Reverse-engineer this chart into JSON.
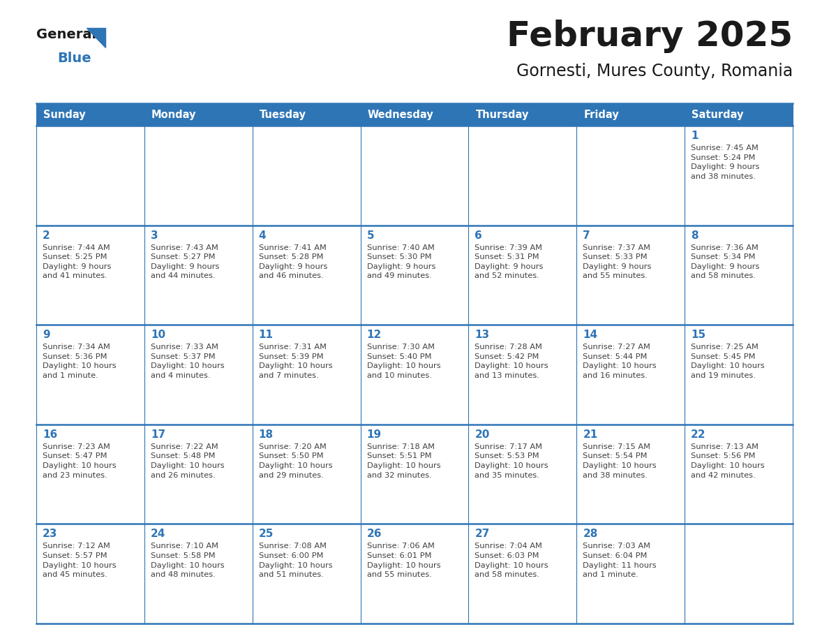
{
  "title": "February 2025",
  "subtitle": "Gornesti, Mures County, Romania",
  "header_bg": "#2E75B6",
  "header_text": "#FFFFFF",
  "cell_bg": "#FFFFFF",
  "grid_line_color": "#2E75B6",
  "day_headers": [
    "Sunday",
    "Monday",
    "Tuesday",
    "Wednesday",
    "Thursday",
    "Friday",
    "Saturday"
  ],
  "title_color": "#1a1a1a",
  "subtitle_color": "#1a1a1a",
  "day_num_color": "#2E75B6",
  "info_color": "#404040",
  "logo_general_color": "#1a1a1a",
  "logo_blue_color": "#2E75B6",
  "calendar_data": [
    [
      null,
      null,
      null,
      null,
      null,
      null,
      {
        "day": "1",
        "sunrise": "7:45 AM",
        "sunset": "5:24 PM",
        "daylight": "9 hours\nand 38 minutes."
      }
    ],
    [
      {
        "day": "2",
        "sunrise": "7:44 AM",
        "sunset": "5:25 PM",
        "daylight": "9 hours\nand 41 minutes."
      },
      {
        "day": "3",
        "sunrise": "7:43 AM",
        "sunset": "5:27 PM",
        "daylight": "9 hours\nand 44 minutes."
      },
      {
        "day": "4",
        "sunrise": "7:41 AM",
        "sunset": "5:28 PM",
        "daylight": "9 hours\nand 46 minutes."
      },
      {
        "day": "5",
        "sunrise": "7:40 AM",
        "sunset": "5:30 PM",
        "daylight": "9 hours\nand 49 minutes."
      },
      {
        "day": "6",
        "sunrise": "7:39 AM",
        "sunset": "5:31 PM",
        "daylight": "9 hours\nand 52 minutes."
      },
      {
        "day": "7",
        "sunrise": "7:37 AM",
        "sunset": "5:33 PM",
        "daylight": "9 hours\nand 55 minutes."
      },
      {
        "day": "8",
        "sunrise": "7:36 AM",
        "sunset": "5:34 PM",
        "daylight": "9 hours\nand 58 minutes."
      }
    ],
    [
      {
        "day": "9",
        "sunrise": "7:34 AM",
        "sunset": "5:36 PM",
        "daylight": "10 hours\nand 1 minute."
      },
      {
        "day": "10",
        "sunrise": "7:33 AM",
        "sunset": "5:37 PM",
        "daylight": "10 hours\nand 4 minutes."
      },
      {
        "day": "11",
        "sunrise": "7:31 AM",
        "sunset": "5:39 PM",
        "daylight": "10 hours\nand 7 minutes."
      },
      {
        "day": "12",
        "sunrise": "7:30 AM",
        "sunset": "5:40 PM",
        "daylight": "10 hours\nand 10 minutes."
      },
      {
        "day": "13",
        "sunrise": "7:28 AM",
        "sunset": "5:42 PM",
        "daylight": "10 hours\nand 13 minutes."
      },
      {
        "day": "14",
        "sunrise": "7:27 AM",
        "sunset": "5:44 PM",
        "daylight": "10 hours\nand 16 minutes."
      },
      {
        "day": "15",
        "sunrise": "7:25 AM",
        "sunset": "5:45 PM",
        "daylight": "10 hours\nand 19 minutes."
      }
    ],
    [
      {
        "day": "16",
        "sunrise": "7:23 AM",
        "sunset": "5:47 PM",
        "daylight": "10 hours\nand 23 minutes."
      },
      {
        "day": "17",
        "sunrise": "7:22 AM",
        "sunset": "5:48 PM",
        "daylight": "10 hours\nand 26 minutes."
      },
      {
        "day": "18",
        "sunrise": "7:20 AM",
        "sunset": "5:50 PM",
        "daylight": "10 hours\nand 29 minutes."
      },
      {
        "day": "19",
        "sunrise": "7:18 AM",
        "sunset": "5:51 PM",
        "daylight": "10 hours\nand 32 minutes."
      },
      {
        "day": "20",
        "sunrise": "7:17 AM",
        "sunset": "5:53 PM",
        "daylight": "10 hours\nand 35 minutes."
      },
      {
        "day": "21",
        "sunrise": "7:15 AM",
        "sunset": "5:54 PM",
        "daylight": "10 hours\nand 38 minutes."
      },
      {
        "day": "22",
        "sunrise": "7:13 AM",
        "sunset": "5:56 PM",
        "daylight": "10 hours\nand 42 minutes."
      }
    ],
    [
      {
        "day": "23",
        "sunrise": "7:12 AM",
        "sunset": "5:57 PM",
        "daylight": "10 hours\nand 45 minutes."
      },
      {
        "day": "24",
        "sunrise": "7:10 AM",
        "sunset": "5:58 PM",
        "daylight": "10 hours\nand 48 minutes."
      },
      {
        "day": "25",
        "sunrise": "7:08 AM",
        "sunset": "6:00 PM",
        "daylight": "10 hours\nand 51 minutes."
      },
      {
        "day": "26",
        "sunrise": "7:06 AM",
        "sunset": "6:01 PM",
        "daylight": "10 hours\nand 55 minutes."
      },
      {
        "day": "27",
        "sunrise": "7:04 AM",
        "sunset": "6:03 PM",
        "daylight": "10 hours\nand 58 minutes."
      },
      {
        "day": "28",
        "sunrise": "7:03 AM",
        "sunset": "6:04 PM",
        "daylight": "11 hours\nand 1 minute."
      },
      null
    ]
  ]
}
